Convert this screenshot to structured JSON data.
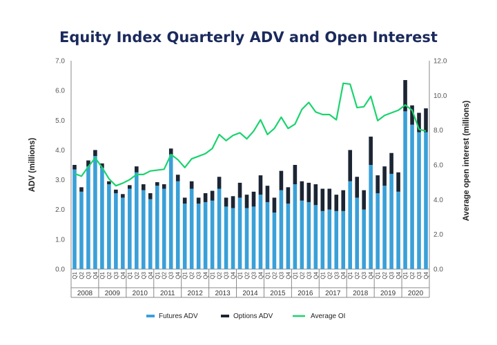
{
  "chart_data": {
    "type": "bar",
    "title": "Equity Index Quarterly ADV and Open Interest",
    "ylabel": "ADV (millions)",
    "y2label": "Average open interest (millions)",
    "ylim": [
      0,
      7
    ],
    "y2lim": [
      0,
      12
    ],
    "yticks": [
      "0.0",
      "1.0",
      "2.0",
      "3.0",
      "4.0",
      "5.0",
      "6.0",
      "7.0"
    ],
    "y2ticks": [
      "0.0",
      "2.0",
      "4.0",
      "6.0",
      "8.0",
      "10.0",
      "12.0"
    ],
    "quarter_labels": [
      "Q1",
      "Q2",
      "Q3",
      "Q4"
    ],
    "years": [
      "2008",
      "2009",
      "2010",
      "2011",
      "2012",
      "2013",
      "2014",
      "2015",
      "2016",
      "2017",
      "2018",
      "2019",
      "2020"
    ],
    "stacked": true,
    "grid": false,
    "legend_position": "bottom",
    "series": [
      {
        "name": "Futures ADV",
        "type": "bar",
        "axis": "left",
        "color": "#3aa0d8",
        "values": [
          3.35,
          2.6,
          3.45,
          3.8,
          3.4,
          2.85,
          2.55,
          2.4,
          2.7,
          3.25,
          2.65,
          2.35,
          2.8,
          2.7,
          3.85,
          2.95,
          2.2,
          2.7,
          2.2,
          2.25,
          2.3,
          2.7,
          2.1,
          2.05,
          2.4,
          2.05,
          2.1,
          2.5,
          2.25,
          1.9,
          2.65,
          2.2,
          2.85,
          2.3,
          2.25,
          2.15,
          1.95,
          2.0,
          1.95,
          1.95,
          2.95,
          2.4,
          2.0,
          3.5,
          2.55,
          2.8,
          3.2,
          2.6,
          5.3,
          4.85,
          4.6,
          4.6
        ]
      },
      {
        "name": "Options ADV",
        "type": "bar",
        "axis": "left",
        "color": "#1c2533",
        "values": [
          0.15,
          0.15,
          0.2,
          0.2,
          0.15,
          0.1,
          0.12,
          0.12,
          0.12,
          0.2,
          0.2,
          0.2,
          0.12,
          0.15,
          0.2,
          0.22,
          0.2,
          0.25,
          0.2,
          0.3,
          0.33,
          0.4,
          0.3,
          0.4,
          0.5,
          0.45,
          0.5,
          0.65,
          0.55,
          0.5,
          0.65,
          0.55,
          0.65,
          0.65,
          0.65,
          0.7,
          0.75,
          0.7,
          0.55,
          0.7,
          1.05,
          0.7,
          0.65,
          0.95,
          0.6,
          0.65,
          0.7,
          0.65,
          1.05,
          0.65,
          0.65,
          0.8
        ]
      },
      {
        "name": "Average OI",
        "type": "line",
        "axis": "right",
        "color": "#19d36e",
        "values": [
          5.5,
          5.35,
          5.9,
          6.4,
          5.85,
          5.2,
          4.8,
          4.95,
          5.15,
          5.45,
          5.45,
          5.65,
          5.7,
          5.75,
          6.6,
          6.3,
          5.85,
          6.35,
          6.5,
          6.65,
          6.95,
          7.75,
          7.4,
          7.7,
          7.85,
          7.5,
          7.95,
          8.6,
          7.75,
          8.1,
          8.75,
          8.1,
          8.35,
          9.2,
          9.6,
          9.05,
          8.9,
          8.9,
          8.6,
          10.7,
          10.65,
          9.3,
          9.35,
          9.95,
          8.55,
          8.85,
          9.0,
          9.15,
          9.45,
          9.15,
          8.05,
          7.95
        ]
      }
    ]
  }
}
